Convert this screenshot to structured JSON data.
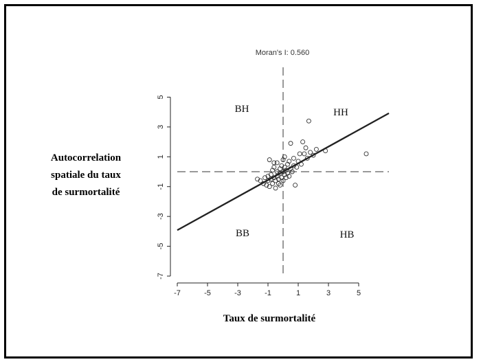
{
  "chart_data": {
    "type": "scatter",
    "title": "Moran's I: 0.560",
    "xlabel": "Taux de surmortalité",
    "ylabel_lines": [
      "Autocorrelation",
      "spatiale du taux",
      "de surmortalité"
    ],
    "xlim": [
      -7,
      7
    ],
    "ylim": [
      -7,
      7
    ],
    "x_ticks": [
      -7,
      -5,
      -3,
      -1,
      1,
      3,
      5
    ],
    "y_ticks": [
      -7,
      -5,
      -3,
      -1,
      1,
      3,
      5
    ],
    "mean_lines": {
      "x": 0,
      "y": 0
    },
    "regression": {
      "slope": 0.56,
      "intercept": 0
    },
    "quadrants": {
      "top_left": "BH",
      "top_right": "HH",
      "bottom_left": "BB",
      "bottom_right": "HB"
    },
    "points": [
      [
        -1.5,
        -0.6
      ],
      [
        -1.3,
        -0.8
      ],
      [
        -1.2,
        -0.4
      ],
      [
        -1.1,
        -0.9
      ],
      [
        -1.0,
        -0.6
      ],
      [
        -1.0,
        -0.3
      ],
      [
        -0.9,
        0.8
      ],
      [
        -0.9,
        -1.0
      ],
      [
        -0.8,
        -0.5
      ],
      [
        -0.8,
        -0.2
      ],
      [
        -0.7,
        0.1
      ],
      [
        -0.7,
        -0.8
      ],
      [
        -0.6,
        -0.4
      ],
      [
        -0.6,
        0.3
      ],
      [
        -0.5,
        -1.1
      ],
      [
        -0.5,
        -0.6
      ],
      [
        -0.4,
        0.0
      ],
      [
        -0.4,
        -0.3
      ],
      [
        -0.4,
        0.6
      ],
      [
        -0.3,
        -0.8
      ],
      [
        -0.3,
        -0.5
      ],
      [
        -0.2,
        0.2
      ],
      [
        -0.2,
        -0.1
      ],
      [
        -0.2,
        -0.9
      ],
      [
        -0.1,
        0.4
      ],
      [
        -0.1,
        -0.4
      ],
      [
        0.0,
        0.0
      ],
      [
        0.0,
        -0.6
      ],
      [
        0.1,
        0.3
      ],
      [
        0.1,
        -0.2
      ],
      [
        0.1,
        1.0
      ],
      [
        0.2,
        -0.4
      ],
      [
        0.2,
        0.1
      ],
      [
        0.3,
        0.5
      ],
      [
        0.3,
        -0.1
      ],
      [
        0.4,
        0.7
      ],
      [
        0.4,
        -0.3
      ],
      [
        0.5,
        0.2
      ],
      [
        0.5,
        1.9
      ],
      [
        0.6,
        0.0
      ],
      [
        0.7,
        0.4
      ],
      [
        0.7,
        0.9
      ],
      [
        0.8,
        -0.9
      ],
      [
        0.9,
        0.3
      ],
      [
        1.0,
        0.7
      ],
      [
        1.1,
        1.2
      ],
      [
        1.2,
        0.5
      ],
      [
        1.3,
        2.0
      ],
      [
        1.4,
        1.2
      ],
      [
        1.5,
        1.6
      ],
      [
        1.6,
        0.9
      ],
      [
        1.7,
        3.4
      ],
      [
        1.8,
        1.3
      ],
      [
        2.0,
        1.1
      ],
      [
        2.2,
        1.5
      ],
      [
        2.8,
        1.4
      ],
      [
        5.5,
        1.2
      ],
      [
        -0.6,
        0.6
      ],
      [
        -1.7,
        -0.5
      ],
      [
        0.0,
        0.8
      ]
    ]
  }
}
